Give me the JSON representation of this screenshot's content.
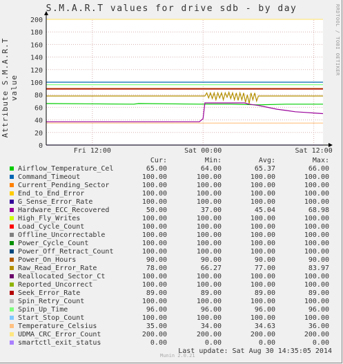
{
  "title": "S.M.A.R.T values for drive sdb - by day",
  "side_credit": "RRDTOOL / TOBI OETIKER",
  "footer": {
    "credit": "Munin 2.0.21",
    "last_update": "Last update: Sat Aug 30 14:35:05 2014"
  },
  "legend": {
    "headers": [
      "Cur:",
      "Min:",
      "Avg:",
      "Max:"
    ],
    "rows": [
      {
        "name": "Airflow_Temperature_Cel",
        "color": "#00cc00",
        "cur": "65.00",
        "min": "64.00",
        "avg": "65.37",
        "max": "66.00"
      },
      {
        "name": "Command_Timeout",
        "color": "#0066b3",
        "cur": "100.00",
        "min": "100.00",
        "avg": "100.00",
        "max": "100.00"
      },
      {
        "name": "Current_Pending_Sector",
        "color": "#ff8000",
        "cur": "100.00",
        "min": "100.00",
        "avg": "100.00",
        "max": "100.00"
      },
      {
        "name": "End_to_End_Error",
        "color": "#ffcc00",
        "cur": "100.00",
        "min": "100.00",
        "avg": "100.00",
        "max": "100.00"
      },
      {
        "name": "G_Sense_Error_Rate",
        "color": "#330099",
        "cur": "100.00",
        "min": "100.00",
        "avg": "100.00",
        "max": "100.00"
      },
      {
        "name": "Hardware_ECC_Recovered",
        "color": "#990099",
        "cur": "50.00",
        "min": "37.00",
        "avg": "45.04",
        "max": "68.98"
      },
      {
        "name": "High_Fly_Writes",
        "color": "#ccff00",
        "cur": "100.00",
        "min": "100.00",
        "avg": "100.00",
        "max": "100.00"
      },
      {
        "name": "Load_Cycle_Count",
        "color": "#ff0000",
        "cur": "100.00",
        "min": "100.00",
        "avg": "100.00",
        "max": "100.00"
      },
      {
        "name": "Offline_Uncorrectable",
        "color": "#808080",
        "cur": "100.00",
        "min": "100.00",
        "avg": "100.00",
        "max": "100.00"
      },
      {
        "name": "Power_Cycle_Count",
        "color": "#008f00",
        "cur": "100.00",
        "min": "100.00",
        "avg": "100.00",
        "max": "100.00"
      },
      {
        "name": "Power_Off_Retract_Count",
        "color": "#00487d",
        "cur": "100.00",
        "min": "100.00",
        "avg": "100.00",
        "max": "100.00"
      },
      {
        "name": "Power_On_Hours",
        "color": "#b35a00",
        "cur": "90.00",
        "min": "90.00",
        "avg": "90.00",
        "max": "90.00"
      },
      {
        "name": "Raw_Read_Error_Rate",
        "color": "#b38f00",
        "cur": "78.00",
        "min": "66.27",
        "avg": "77.00",
        "max": "83.97"
      },
      {
        "name": "Reallocated_Sector_Ct",
        "color": "#6b006b",
        "cur": "100.00",
        "min": "100.00",
        "avg": "100.00",
        "max": "100.00"
      },
      {
        "name": "Reported_Uncorrect",
        "color": "#8fb300",
        "cur": "100.00",
        "min": "100.00",
        "avg": "100.00",
        "max": "100.00"
      },
      {
        "name": "Seek_Error_Rate",
        "color": "#b30000",
        "cur": "89.00",
        "min": "89.00",
        "avg": "89.00",
        "max": "89.00"
      },
      {
        "name": "Spin_Retry_Count",
        "color": "#bebebe",
        "cur": "100.00",
        "min": "100.00",
        "avg": "100.00",
        "max": "100.00"
      },
      {
        "name": "Spin_Up_Time",
        "color": "#80ff80",
        "cur": "96.00",
        "min": "96.00",
        "avg": "96.00",
        "max": "96.00"
      },
      {
        "name": "Start_Stop_Count",
        "color": "#80c9ff",
        "cur": "100.00",
        "min": "100.00",
        "avg": "100.00",
        "max": "100.00"
      },
      {
        "name": "Temperature_Celsius",
        "color": "#ffc080",
        "cur": "35.00",
        "min": "34.00",
        "avg": "34.63",
        "max": "36.00"
      },
      {
        "name": "UDMA_CRC_Error_Count",
        "color": "#ffe680",
        "cur": "200.00",
        "min": "200.00",
        "avg": "200.00",
        "max": "200.00"
      },
      {
        "name": "smartctl_exit_status",
        "color": "#aa80ff",
        "cur": "0.00",
        "min": "0.00",
        "avg": "0.00",
        "max": "0.00"
      }
    ]
  },
  "chart_data": {
    "type": "line",
    "ylabel": "Attribute S.M.A.R.T value",
    "ylim": [
      0,
      200
    ],
    "yticks": [
      0,
      20,
      40,
      60,
      80,
      100,
      120,
      140,
      160,
      180,
      200
    ],
    "x_range_hours": [
      0,
      30
    ],
    "xticks": [
      {
        "label": "Fri 12:00",
        "hour": 5
      },
      {
        "label": "Sat 00:00",
        "hour": 17
      },
      {
        "label": "Sat 12:00",
        "hour": 29
      }
    ],
    "grid": true,
    "series": [
      {
        "name": "UDMA_CRC_Error_Count",
        "color": "#ffe680",
        "points": [
          [
            0,
            200
          ],
          [
            30,
            200
          ]
        ]
      },
      {
        "name": "Command_Timeout",
        "color": "#0066b3",
        "points": [
          [
            0,
            100
          ],
          [
            30,
            100
          ]
        ]
      },
      {
        "name": "Spin_Up_Time",
        "color": "#80ff80",
        "points": [
          [
            0,
            96
          ],
          [
            30,
            96
          ]
        ]
      },
      {
        "name": "Power_On_Hours",
        "color": "#b35a00",
        "points": [
          [
            0,
            90
          ],
          [
            30,
            90
          ]
        ]
      },
      {
        "name": "Seek_Error_Rate",
        "color": "#b30000",
        "points": [
          [
            0,
            89
          ],
          [
            30,
            89
          ]
        ]
      },
      {
        "name": "Raw_Read_Error_Rate",
        "color": "#b38f00",
        "points": [
          [
            0,
            78
          ],
          [
            17.2,
            78
          ],
          [
            17.4,
            83
          ],
          [
            17.6,
            75
          ],
          [
            17.8,
            83
          ],
          [
            18.0,
            74
          ],
          [
            18.2,
            83
          ],
          [
            18.4,
            72
          ],
          [
            18.6,
            83
          ],
          [
            18.8,
            75
          ],
          [
            19.0,
            83
          ],
          [
            19.2,
            72
          ],
          [
            19.4,
            83
          ],
          [
            19.6,
            76
          ],
          [
            19.8,
            84
          ],
          [
            20.0,
            74
          ],
          [
            20.2,
            83
          ],
          [
            20.4,
            72
          ],
          [
            20.6,
            83
          ],
          [
            20.8,
            71
          ],
          [
            21.0,
            83
          ],
          [
            21.2,
            72
          ],
          [
            21.4,
            83
          ],
          [
            21.6,
            68
          ],
          [
            21.8,
            80
          ],
          [
            22.0,
            66
          ],
          [
            22.2,
            83
          ],
          [
            22.4,
            72
          ],
          [
            22.6,
            83
          ],
          [
            22.8,
            70
          ],
          [
            23.0,
            78
          ],
          [
            30,
            78
          ]
        ]
      },
      {
        "name": "Airflow_Temperature_Cel",
        "color": "#00cc00",
        "points": [
          [
            0,
            66
          ],
          [
            9.5,
            65
          ],
          [
            10.0,
            66
          ],
          [
            17,
            65
          ],
          [
            20,
            65
          ],
          [
            23,
            64
          ],
          [
            26,
            65
          ],
          [
            30,
            65
          ]
        ]
      },
      {
        "name": "Hardware_ECC_Recovered",
        "color": "#990099",
        "points": [
          [
            0,
            37
          ],
          [
            16.6,
            37
          ],
          [
            17.0,
            42
          ],
          [
            17.2,
            67
          ],
          [
            21.5,
            67
          ],
          [
            22.0,
            65
          ],
          [
            23.0,
            63
          ],
          [
            24.0,
            60
          ],
          [
            25.0,
            57
          ],
          [
            26.0,
            55
          ],
          [
            27.0,
            53
          ],
          [
            28.0,
            52
          ],
          [
            29.0,
            51
          ],
          [
            30,
            50
          ]
        ]
      },
      {
        "name": "Temperature_Celsius",
        "color": "#ffc080",
        "points": [
          [
            0,
            35
          ],
          [
            30,
            35
          ]
        ]
      },
      {
        "name": "smartctl_exit_status",
        "color": "#aa80ff",
        "points": [
          [
            0,
            0
          ],
          [
            30,
            0
          ]
        ]
      }
    ]
  }
}
